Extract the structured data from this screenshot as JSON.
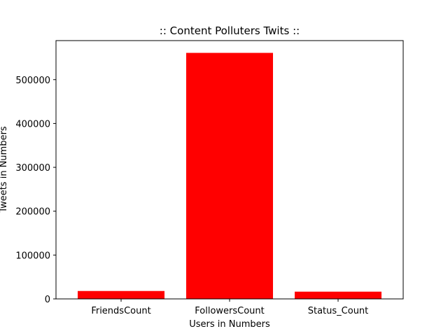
{
  "chart_data": {
    "type": "bar",
    "title": ":: Content Polluters Twits ::",
    "xlabel": "Users in Numbers",
    "ylabel": "Tweets in Numbers",
    "categories": [
      "FriendsCount",
      "FollowersCount",
      "Status_Count"
    ],
    "values": [
      18000,
      561000,
      16500
    ],
    "ylim": [
      0,
      589000
    ],
    "yticks": [
      0,
      100000,
      200000,
      300000,
      400000,
      500000
    ],
    "ytick_labels": [
      "0",
      "100000",
      "200000",
      "300000",
      "400000",
      "500000"
    ],
    "grid": false,
    "legend": "none",
    "bar_color": "#ff0000"
  }
}
